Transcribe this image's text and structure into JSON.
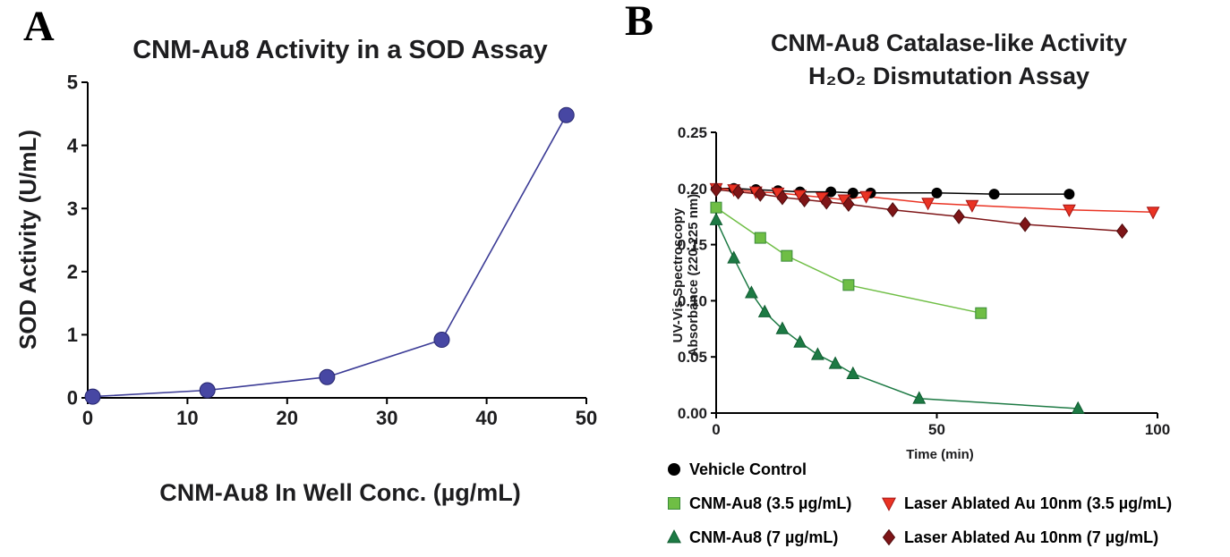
{
  "panels": {
    "a": {
      "label": "A",
      "title": "CNM-Au8 Activity in a SOD Assay",
      "xlabel": "CNM-Au8 In Well Conc. (µg/mL)",
      "ylabel": "SOD Activity (U/mL)"
    },
    "b": {
      "label": "B",
      "title_line1": "CNM-Au8 Catalase-like Activity",
      "title_line2": "H₂O₂ Dismutation Assay",
      "xlabel": "Time (min)",
      "ylabel_line1": "UV-Vis Spectroscopy",
      "ylabel_line2": "Absorbance (220-225 nm)"
    }
  },
  "chart_data": [
    {
      "panel": "A",
      "type": "line",
      "title": "CNM-Au8 Activity in a SOD Assay",
      "xlabel": "CNM-Au8 In Well Conc. (µg/mL)",
      "ylabel": "SOD Activity (U/mL)",
      "xlim": [
        0,
        50
      ],
      "ylim": [
        0,
        5
      ],
      "xticks": [
        0,
        10,
        20,
        30,
        40,
        50
      ],
      "yticks": [
        0,
        1,
        2,
        3,
        4,
        5
      ],
      "grid": false,
      "series": [
        {
          "name": "SOD Activity",
          "marker": "circle",
          "marker_size": 17,
          "color": "#4747a3",
          "edge": "#26266e",
          "line_color": "#3c3c96",
          "line_width": 1.6,
          "points": [
            [
              0.5,
              0.02
            ],
            [
              12,
              0.12
            ],
            [
              24,
              0.33
            ],
            [
              35.5,
              0.92
            ],
            [
              48,
              4.48
            ]
          ]
        }
      ]
    },
    {
      "panel": "B",
      "type": "line",
      "title": "CNM-Au8 Catalase-like Activity — H₂O₂ Dismutation Assay",
      "xlabel": "Time (min)",
      "ylabel": "UV-Vis Spectroscopy Absorbance (220-225 nm)",
      "xlim": [
        0,
        100
      ],
      "ylim": [
        0,
        0.25
      ],
      "xticks": [
        0,
        50,
        100
      ],
      "yticks": [
        0,
        0.05,
        0.1,
        0.15,
        0.2,
        0.25
      ],
      "ytick_decimals": 2,
      "grid": false,
      "legend_position": "below",
      "series": [
        {
          "name": "Vehicle Control",
          "marker": "circle",
          "marker_size": 11,
          "color": "#000000",
          "edge": "#000000",
          "line_color": "#000000",
          "line_width": 1.5,
          "points": [
            [
              0,
              0.2
            ],
            [
              4,
              0.2
            ],
            [
              9,
              0.199
            ],
            [
              14,
              0.198
            ],
            [
              19,
              0.197
            ],
            [
              26,
              0.197
            ],
            [
              31,
              0.196
            ],
            [
              35,
              0.196
            ],
            [
              50,
              0.196
            ],
            [
              63,
              0.195
            ],
            [
              80,
              0.195
            ]
          ]
        },
        {
          "name": "CNM-Au8 (3.5 µg/mL)",
          "marker": "square",
          "marker_size": 12,
          "color": "#6fbe45",
          "edge": "#3a8a3a",
          "line_color": "#6fbe45",
          "line_width": 1.5,
          "points": [
            [
              0,
              0.183
            ],
            [
              10,
              0.156
            ],
            [
              16,
              0.14
            ],
            [
              30,
              0.114
            ],
            [
              60,
              0.089
            ]
          ]
        },
        {
          "name": "CNM-Au8 (7 µg/mL)",
          "marker": "triangle-up",
          "marker_size": 12,
          "color": "#1d7a44",
          "edge": "#0f5c30",
          "line_color": "#1d7a44",
          "line_width": 1.5,
          "points": [
            [
              0,
              0.172
            ],
            [
              4,
              0.138
            ],
            [
              8,
              0.107
            ],
            [
              11,
              0.09
            ],
            [
              15,
              0.075
            ],
            [
              19,
              0.063
            ],
            [
              23,
              0.052
            ],
            [
              27,
              0.044
            ],
            [
              31,
              0.035
            ],
            [
              46,
              0.013
            ],
            [
              82,
              0.004
            ]
          ]
        },
        {
          "name": "Laser Ablated Au 10nm (3.5 µg/mL)",
          "marker": "triangle-down",
          "marker_size": 12,
          "color": "#ea3323",
          "edge": "#a31515",
          "line_color": "#ea3323",
          "line_width": 1.5,
          "points": [
            [
              0,
              0.2
            ],
            [
              4,
              0.199
            ],
            [
              9,
              0.197
            ],
            [
              14,
              0.196
            ],
            [
              19,
              0.194
            ],
            [
              24,
              0.192
            ],
            [
              29,
              0.19
            ],
            [
              34,
              0.193
            ],
            [
              48,
              0.187
            ],
            [
              58,
              0.185
            ],
            [
              80,
              0.181
            ],
            [
              99,
              0.179
            ]
          ]
        },
        {
          "name": "Laser Ablated Au 10nm (7 µg/mL)",
          "marker": "diamond",
          "marker_size": 12,
          "color": "#7e1517",
          "edge": "#4f0c0e",
          "line_color": "#7e1517",
          "line_width": 1.5,
          "points": [
            [
              0,
              0.199
            ],
            [
              5,
              0.197
            ],
            [
              10,
              0.195
            ],
            [
              15,
              0.192
            ],
            [
              20,
              0.19
            ],
            [
              25,
              0.188
            ],
            [
              30,
              0.186
            ],
            [
              40,
              0.181
            ],
            [
              55,
              0.175
            ],
            [
              70,
              0.168
            ],
            [
              92,
              0.162
            ]
          ]
        }
      ],
      "legend": [
        {
          "id": "vehicle-control",
          "label": "Vehicle Control",
          "marker": "circle",
          "color": "#000000",
          "edge": "#000000"
        },
        {
          "id": "cnm-au8-3-5",
          "label": "CNM-Au8 (3.5 µg/mL)",
          "marker": "square",
          "color": "#6fbe45",
          "edge": "#3a8a3a"
        },
        {
          "id": "cnm-au8-7",
          "label": "CNM-Au8 (7 µg/mL)",
          "marker": "triangle-up",
          "color": "#1d7a44",
          "edge": "#0f5c30"
        },
        {
          "id": "laser-ablated-3-5",
          "label": "Laser Ablated Au 10nm (3.5 µg/mL)",
          "marker": "triangle-down",
          "color": "#ea3323",
          "edge": "#a31515"
        },
        {
          "id": "laser-ablated-7",
          "label": "Laser Ablated Au 10nm (7 µg/mL)",
          "marker": "diamond",
          "color": "#7e1517",
          "edge": "#4f0c0e"
        }
      ]
    }
  ]
}
